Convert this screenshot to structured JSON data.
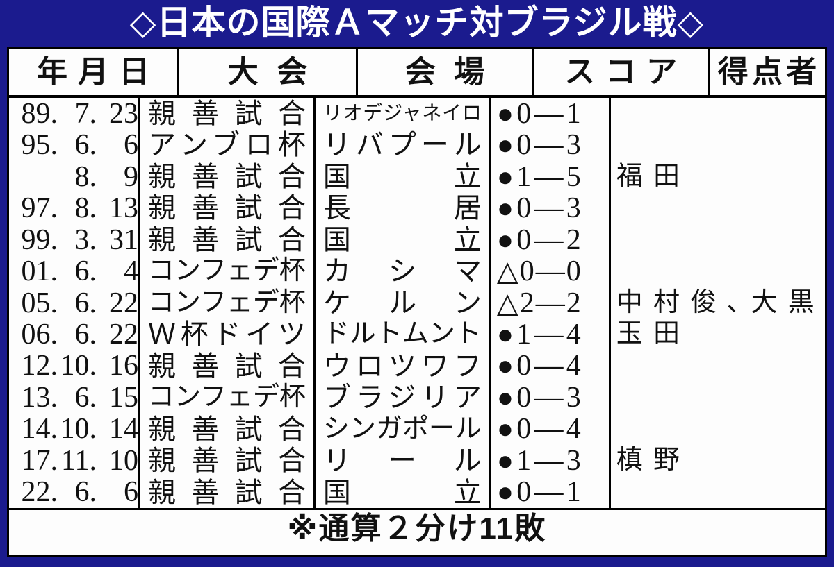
{
  "title": "◇日本の国際Ａマッチ対ブラジル戦◇",
  "table": {
    "headers": [
      "年月日",
      "大会",
      "会場",
      "スコア",
      "得点者"
    ],
    "score_separator": "—",
    "rows": [
      {
        "date": [
          "89.",
          "7.",
          "23"
        ],
        "tournament": "親善試合",
        "venue": "リオデジャネイロ",
        "score": {
          "mark": "●",
          "home": "0",
          "away": "1"
        },
        "scorer": ""
      },
      {
        "date": [
          "95.",
          "6.",
          "6"
        ],
        "tournament": "アンブロ杯",
        "venue": "リバプール",
        "score": {
          "mark": "●",
          "home": "0",
          "away": "3"
        },
        "scorer": ""
      },
      {
        "date": [
          "",
          "8.",
          "9"
        ],
        "tournament": "親善試合",
        "venue": "国立",
        "score": {
          "mark": "●",
          "home": "1",
          "away": "5"
        },
        "scorer": "福田"
      },
      {
        "date": [
          "97.",
          "8.",
          "13"
        ],
        "tournament": "親善試合",
        "venue": "長居",
        "score": {
          "mark": "●",
          "home": "0",
          "away": "3"
        },
        "scorer": ""
      },
      {
        "date": [
          "99.",
          "3.",
          "31"
        ],
        "tournament": "親善試合",
        "venue": "国立",
        "score": {
          "mark": "●",
          "home": "0",
          "away": "2"
        },
        "scorer": ""
      },
      {
        "date": [
          "01.",
          "6.",
          "4"
        ],
        "tournament": "コンフェデ杯",
        "venue": "カシマ",
        "score": {
          "mark": "△",
          "home": "0",
          "away": "0"
        },
        "scorer": ""
      },
      {
        "date": [
          "05.",
          "6.",
          "22"
        ],
        "tournament": "コンフェデ杯",
        "venue": "ケルン",
        "score": {
          "mark": "△",
          "home": "2",
          "away": "2"
        },
        "scorer": "中村俊､大黒"
      },
      {
        "date": [
          "06.",
          "6.",
          "22"
        ],
        "tournament": "Ｗ杯ドイツ",
        "venue": "ドルトムント",
        "score": {
          "mark": "●",
          "home": "1",
          "away": "4"
        },
        "scorer": "玉田"
      },
      {
        "date": [
          "12.",
          "10.",
          "16"
        ],
        "tournament": "親善試合",
        "venue": "ウロツワフ",
        "score": {
          "mark": "●",
          "home": "0",
          "away": "4"
        },
        "scorer": ""
      },
      {
        "date": [
          "13.",
          "6.",
          "15"
        ],
        "tournament": "コンフェデ杯",
        "venue": "ブラジリア",
        "score": {
          "mark": "●",
          "home": "0",
          "away": "3"
        },
        "scorer": ""
      },
      {
        "date": [
          "14.",
          "10.",
          "14"
        ],
        "tournament": "親善試合",
        "venue": "シンガポール",
        "score": {
          "mark": "●",
          "home": "0",
          "away": "4"
        },
        "scorer": ""
      },
      {
        "date": [
          "17.",
          "11.",
          "10"
        ],
        "tournament": "親善試合",
        "venue": "リール",
        "score": {
          "mark": "●",
          "home": "1",
          "away": "3"
        },
        "scorer": "槙野"
      },
      {
        "date": [
          "22.",
          "6.",
          "6"
        ],
        "tournament": "親善試合",
        "venue": "国立",
        "score": {
          "mark": "●",
          "home": "0",
          "away": "1"
        },
        "scorer": ""
      }
    ]
  },
  "footer": {
    "note": "※通算２分け11敗"
  },
  "colors": {
    "frame_blue": "#1b1b8e",
    "title_text": "#ffffff",
    "table_bg": "#fdfdfd",
    "line_black": "#000000",
    "text_black": "#111111"
  }
}
